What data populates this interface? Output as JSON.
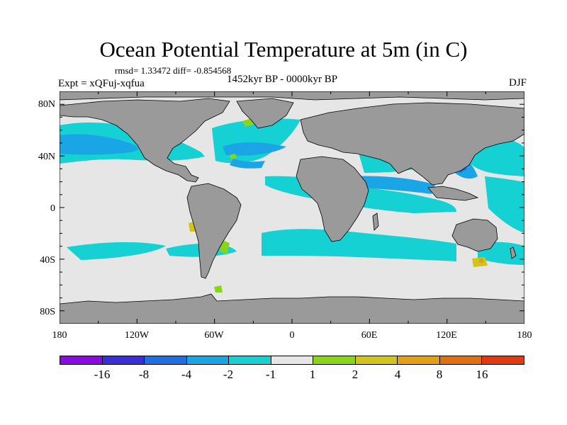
{
  "title": "Ocean Potential Temperature at 5m (in C)",
  "stats": "rmsd= 1.33472 diff= -0.854568",
  "experiment": "Expt = xQFuj-xqfua",
  "period": "1452kyr BP - 0000kyr BP",
  "season": "DJF",
  "map": {
    "projection": "cylindrical equidistant",
    "lon_range": [
      -180,
      180
    ],
    "lat_range": [
      -90,
      90
    ],
    "land_color": "#9a9a9a",
    "ocean_neutral_color": "#e6e6e6",
    "coastline_color": "#000000"
  },
  "y_ticks": [
    "80N",
    "40N",
    "0",
    "40S",
    "80S"
  ],
  "x_ticks": [
    "180",
    "120W",
    "60W",
    "0",
    "60E",
    "120E",
    "180"
  ],
  "colorbar": {
    "colors": [
      "#8a0ae6",
      "#3a2ed6",
      "#1f6fe0",
      "#1aa5e6",
      "#16d1d3",
      "#e6e6e6",
      "#8ad41a",
      "#d2c41a",
      "#e2a012",
      "#e07010",
      "#e03a0e"
    ],
    "labels": [
      "-16",
      "-8",
      "-4",
      "-2",
      "-1",
      "1",
      "2",
      "4",
      "8",
      "16"
    ]
  }
}
